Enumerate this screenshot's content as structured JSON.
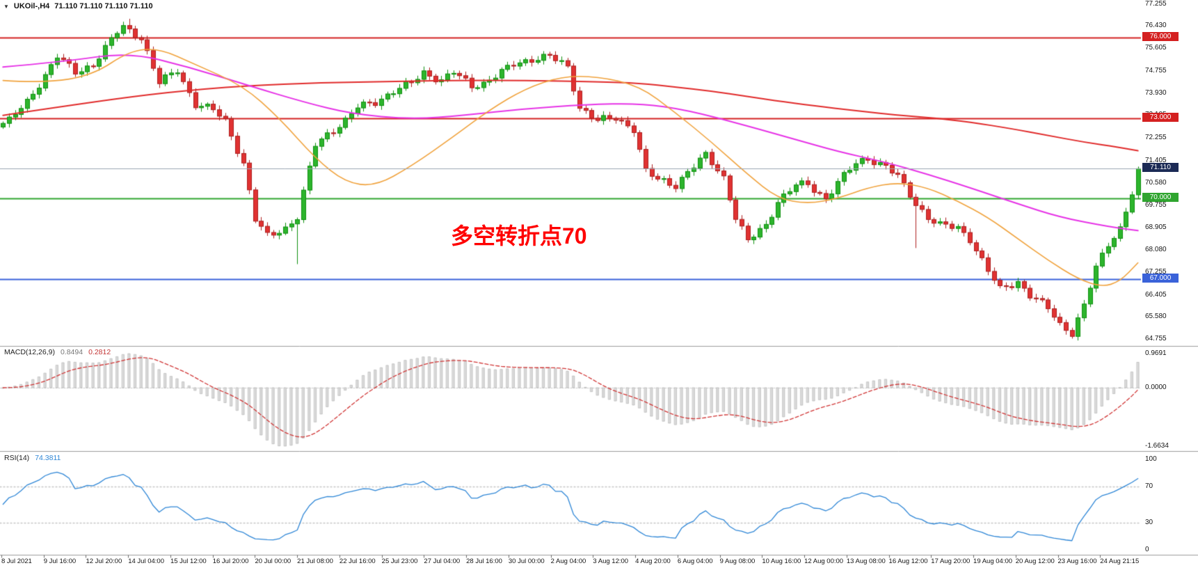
{
  "header": {
    "symbol_period": "UKOil-,H4",
    "ohlc": "71.110 71.110 71.110 71.110"
  },
  "annotation": {
    "text": "多空转折点70",
    "color": "#FF0000"
  },
  "panels": {
    "macd": {
      "label": "MACD(12,26,9)",
      "value_main": "0.8494",
      "value_signal": "0.2812",
      "axis": [
        {
          "text": "0.9691",
          "value": 0.9691
        },
        {
          "text": "0.0000",
          "value": 0
        },
        {
          "text": "-1.6634",
          "value": -1.6634
        }
      ]
    },
    "rsi": {
      "label": "RSI(14)",
      "value": "74.3811",
      "axis": [
        {
          "text": "100",
          "value": 100
        },
        {
          "text": "70",
          "value": 70
        },
        {
          "text": "30",
          "value": 30
        },
        {
          "text": "0",
          "value": 0
        }
      ]
    }
  },
  "chart_data": {
    "type": "candlestick",
    "symbol": "UKOil-",
    "timeframe": "H4",
    "current_price": 71.11,
    "candle_count": 190,
    "price_range": [
      64.5,
      77.4
    ],
    "price_axis_ticks": [
      77.255,
      76.43,
      75.605,
      74.755,
      73.93,
      73.105,
      72.255,
      71.405,
      70.58,
      69.755,
      68.905,
      68.08,
      67.255,
      66.405,
      65.58,
      64.755
    ],
    "colors": {
      "up_fill": "#2DB52D",
      "up_stroke": "#0E8F0E",
      "down_fill": "#E03232",
      "down_stroke": "#AC1F1F",
      "hist_fill": "#D9D9D9",
      "hist_stroke": "#ACACAC"
    },
    "h_lines": [
      {
        "price": 76.0,
        "label": "76.000",
        "color": "#D42020",
        "width": 2,
        "badge_bg": "#D42020"
      },
      {
        "price": 73.0,
        "label": "73.000",
        "color": "#D42020",
        "width": 2,
        "badge_bg": "#D42020"
      },
      {
        "price": 70.0,
        "label": "70.000",
        "color": "#2FA52F",
        "width": 2,
        "badge_bg": "#2FA52F"
      },
      {
        "price": 67.0,
        "label": "67.000",
        "color": "#3A62D9",
        "width": 2,
        "badge_bg": "#3A62D9"
      },
      {
        "price": 71.11,
        "label": "71.110",
        "color": "#9AA4B2",
        "width": 1,
        "badge_bg": "#1B2A55",
        "is_price_line": true
      }
    ],
    "close_anchors": [
      [
        0,
        72.8
      ],
      [
        1,
        72.9
      ],
      [
        4,
        73.6
      ],
      [
        7,
        74.6
      ],
      [
        9,
        75.3
      ],
      [
        12,
        74.7
      ],
      [
        15,
        75.0
      ],
      [
        19,
        76.2
      ],
      [
        20,
        76.4
      ],
      [
        23,
        76.0
      ],
      [
        26,
        74.3
      ],
      [
        29,
        74.8
      ],
      [
        32,
        73.5
      ],
      [
        35,
        73.3
      ],
      [
        37,
        72.9
      ],
      [
        40,
        71.3
      ],
      [
        42,
        69.2
      ],
      [
        44,
        68.6
      ],
      [
        47,
        68.9
      ],
      [
        49,
        69.3
      ],
      [
        52,
        72.0
      ],
      [
        54,
        72.4
      ],
      [
        57,
        72.9
      ],
      [
        59,
        73.4
      ],
      [
        62,
        73.6
      ],
      [
        65,
        74.0
      ],
      [
        68,
        74.3
      ],
      [
        70,
        74.7
      ],
      [
        73,
        74.4
      ],
      [
        75,
        74.7
      ],
      [
        78,
        74.2
      ],
      [
        80,
        74.3
      ],
      [
        83,
        74.7
      ],
      [
        85,
        75.0
      ],
      [
        88,
        75.2
      ],
      [
        91,
        75.3
      ],
      [
        94,
        74.9
      ],
      [
        96,
        73.4
      ],
      [
        99,
        72.9
      ],
      [
        102,
        73.0
      ],
      [
        105,
        72.6
      ],
      [
        107,
        71.0
      ],
      [
        109,
        70.7
      ],
      [
        112,
        70.5
      ],
      [
        114,
        71.0
      ],
      [
        117,
        71.6
      ],
      [
        120,
        70.8
      ],
      [
        122,
        69.3
      ],
      [
        124,
        68.4
      ],
      [
        127,
        69.0
      ],
      [
        129,
        69.9
      ],
      [
        132,
        70.5
      ],
      [
        134,
        70.5
      ],
      [
        137,
        70.0
      ],
      [
        139,
        70.6
      ],
      [
        142,
        71.3
      ],
      [
        144,
        71.5
      ],
      [
        147,
        71.2
      ],
      [
        149,
        70.8
      ],
      [
        152,
        69.8
      ],
      [
        154,
        69.3
      ],
      [
        156,
        69.0
      ],
      [
        159,
        68.9
      ],
      [
        161,
        68.5
      ],
      [
        164,
        67.3
      ],
      [
        166,
        66.6
      ],
      [
        169,
        66.9
      ],
      [
        171,
        66.4
      ],
      [
        174,
        65.9
      ],
      [
        176,
        65.3
      ],
      [
        178,
        65.0
      ],
      [
        180,
        66.0
      ],
      [
        182,
        67.4
      ],
      [
        184,
        68.3
      ],
      [
        186,
        68.9
      ],
      [
        188,
        70.2
      ],
      [
        189,
        71.11
      ]
    ],
    "wick_events": [
      {
        "index": 21,
        "high": 76.7
      },
      {
        "index": 49,
        "low": 67.55
      },
      {
        "index": 152,
        "low": 68.15
      },
      {
        "index": 178,
        "low": 64.85
      }
    ],
    "ma_lines": [
      {
        "name": "slow-ma",
        "color": "#E02A2A",
        "width": 2,
        "anchors": [
          [
            0,
            73.1
          ],
          [
            12,
            73.5
          ],
          [
            25,
            73.9
          ],
          [
            37,
            74.15
          ],
          [
            50,
            74.3
          ],
          [
            62,
            74.35
          ],
          [
            75,
            74.4
          ],
          [
            87,
            74.4
          ],
          [
            99,
            74.35
          ],
          [
            106,
            74.3
          ],
          [
            112,
            74.15
          ],
          [
            118,
            74.0
          ],
          [
            124,
            73.8
          ],
          [
            130,
            73.6
          ],
          [
            137,
            73.4
          ],
          [
            143,
            73.25
          ],
          [
            149,
            73.1
          ],
          [
            155,
            73.0
          ],
          [
            161,
            72.85
          ],
          [
            168,
            72.6
          ],
          [
            174,
            72.35
          ],
          [
            180,
            72.1
          ],
          [
            186,
            71.9
          ],
          [
            189,
            71.78
          ]
        ]
      },
      {
        "name": "medium-ma",
        "color": "#E632E6",
        "width": 2,
        "anchors": [
          [
            0,
            74.9
          ],
          [
            10,
            75.1
          ],
          [
            21,
            75.45
          ],
          [
            31,
            74.9
          ],
          [
            41,
            74.2
          ],
          [
            50,
            73.6
          ],
          [
            58,
            73.15
          ],
          [
            68,
            72.95
          ],
          [
            77,
            73.1
          ],
          [
            87,
            73.35
          ],
          [
            97,
            73.5
          ],
          [
            106,
            73.55
          ],
          [
            114,
            73.3
          ],
          [
            124,
            72.7
          ],
          [
            132,
            72.2
          ],
          [
            139,
            71.75
          ],
          [
            147,
            71.35
          ],
          [
            154,
            70.9
          ],
          [
            161,
            70.4
          ],
          [
            169,
            69.8
          ],
          [
            176,
            69.3
          ],
          [
            184,
            68.95
          ],
          [
            189,
            68.8
          ]
        ]
      },
      {
        "name": "fast-ma",
        "color": "#F0A23C",
        "width": 1.6,
        "anchors": [
          [
            0,
            74.4
          ],
          [
            7,
            74.3
          ],
          [
            15,
            74.6
          ],
          [
            21,
            75.5
          ],
          [
            26,
            75.6
          ],
          [
            32,
            75.0
          ],
          [
            40,
            74.2
          ],
          [
            46,
            73.0
          ],
          [
            52,
            71.5
          ],
          [
            57,
            70.6
          ],
          [
            62,
            70.45
          ],
          [
            68,
            71.2
          ],
          [
            75,
            72.3
          ],
          [
            81,
            73.3
          ],
          [
            87,
            74.1
          ],
          [
            93,
            74.55
          ],
          [
            99,
            74.55
          ],
          [
            106,
            74.2
          ],
          [
            112,
            73.2
          ],
          [
            118,
            72.1
          ],
          [
            124,
            70.9
          ],
          [
            129,
            70.0
          ],
          [
            134,
            69.8
          ],
          [
            139,
            70.0
          ],
          [
            144,
            70.4
          ],
          [
            149,
            70.6
          ],
          [
            154,
            70.4
          ],
          [
            159,
            69.9
          ],
          [
            164,
            69.3
          ],
          [
            169,
            68.5
          ],
          [
            174,
            67.7
          ],
          [
            179,
            67.0
          ],
          [
            183,
            66.7
          ],
          [
            186,
            66.9
          ],
          [
            189,
            67.6
          ]
        ]
      }
    ],
    "macd": {
      "params": [
        12,
        26,
        9
      ],
      "signal_color": "#D03535",
      "axis_max": 0.9691,
      "axis_min": -1.6634,
      "current_main": 0.8494,
      "current_signal": 0.2812
    },
    "rsi": {
      "period": 14,
      "color": "#2E86D6",
      "levels": [
        70,
        30
      ],
      "current": 74.3811
    },
    "time_labels": [
      "8 Jul 2021",
      "9 Jul 16:00",
      "12 Jul 20:00",
      "14 Jul 04:00",
      "15 Jul 12:00",
      "16 Jul 20:00",
      "20 Jul 00:00",
      "21 Jul 08:00",
      "22 Jul 16:00",
      "25 Jul 23:00",
      "27 Jul 04:00",
      "28 Jul 16:00",
      "30 Jul 00:00",
      "2 Aug 04:00",
      "3 Aug 12:00",
      "4 Aug 20:00",
      "6 Aug 04:00",
      "9 Aug 08:00",
      "10 Aug 16:00",
      "12 Aug 00:00",
      "13 Aug 08:00",
      "16 Aug 12:00",
      "17 Aug 20:00",
      "19 Aug 04:00",
      "20 Aug 12:00",
      "23 Aug 16:00",
      "24 Aug 21:15"
    ]
  }
}
